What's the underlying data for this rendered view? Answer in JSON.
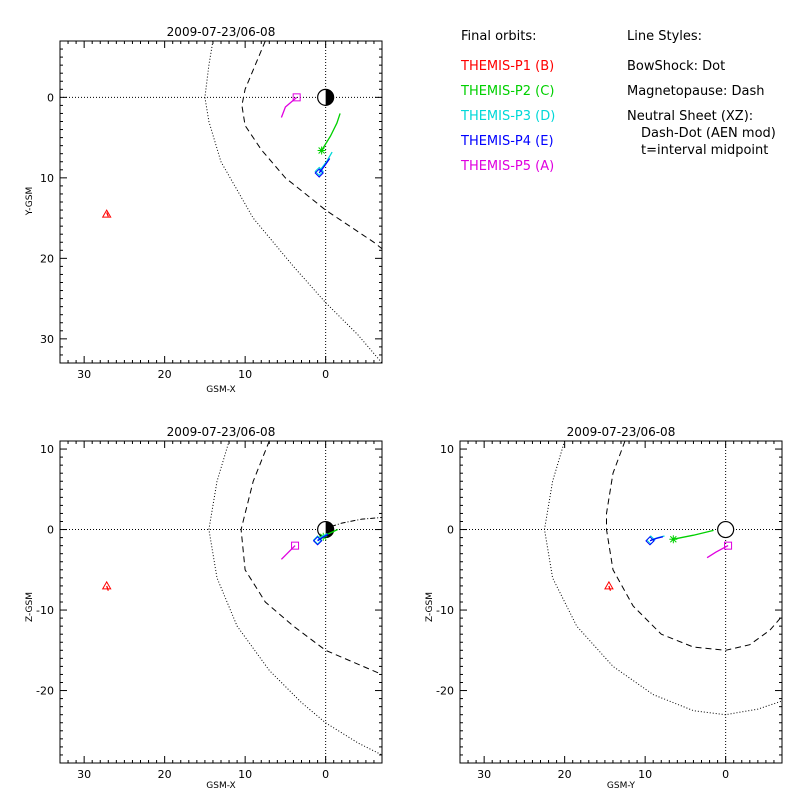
{
  "colors": {
    "p1": "#ff0000",
    "p2": "#00d000",
    "p3": "#00d8d8",
    "p4": "#0000ff",
    "p5": "#e000e0"
  },
  "legend": {
    "final_orbits_title": "Final orbits:",
    "probes": [
      {
        "label": "THEMIS-P1 (B)",
        "color_key": "p1"
      },
      {
        "label": "THEMIS-P2 (C)",
        "color_key": "p2"
      },
      {
        "label": "THEMIS-P3 (D)",
        "color_key": "p3"
      },
      {
        "label": "THEMIS-P4 (E)",
        "color_key": "p4"
      },
      {
        "label": "THEMIS-P5 (A)",
        "color_key": "p5"
      }
    ],
    "line_styles_title": "Line Styles:",
    "bowshock": "BowShock: Dot",
    "magnetopause": "Magnetopause: Dash",
    "neutral_sheet": "Neutral Sheet (XZ):",
    "neutral_sheet_detail": "Dash-Dot (AEN mod)",
    "neutral_sheet_time": "t=interval midpoint"
  },
  "chart_data": [
    {
      "type": "line",
      "title": "2009-07-23/06-08",
      "xlabel": "GSM-X",
      "ylabel": "Y-GSM",
      "xlim": [
        33,
        -7
      ],
      "ylim": [
        33,
        -7
      ],
      "xticks": [
        30,
        20,
        10,
        0
      ],
      "yticks": [
        0,
        10,
        20,
        30
      ],
      "bowshock": [
        [
          14,
          -7
        ],
        [
          14.5,
          -4
        ],
        [
          15,
          0
        ],
        [
          14.5,
          3
        ],
        [
          13,
          8
        ],
        [
          9,
          15
        ],
        [
          4,
          21
        ],
        [
          0,
          25.5
        ],
        [
          -4,
          29.5
        ],
        [
          -7,
          33
        ]
      ],
      "magnetopause": [
        [
          7.5,
          -7
        ],
        [
          10,
          -1
        ],
        [
          10.4,
          1
        ],
        [
          10,
          3.5
        ],
        [
          8,
          6.5
        ],
        [
          5,
          10
        ],
        [
          2.5,
          12
        ],
        [
          0,
          14
        ],
        [
          -3,
          16
        ],
        [
          -6,
          18
        ],
        [
          -7,
          18.8
        ]
      ],
      "orbits": [
        {
          "name": "THEMIS-P1 (B)",
          "color_key": "p1",
          "path": [
            [
              27.2,
              14.3
            ],
            [
              27.0,
              14.8
            ]
          ],
          "end": [
            27.2,
            14.5
          ],
          "marker": "triangle"
        },
        {
          "name": "THEMIS-P2 (C)",
          "color_key": "p2",
          "path": [
            [
              0.5,
              6.6
            ],
            [
              -0.6,
              4.8
            ],
            [
              -1.4,
              3.2
            ],
            [
              -1.8,
              2.0
            ]
          ],
          "end": [
            0.5,
            6.6
          ],
          "marker": "asterisk"
        },
        {
          "name": "THEMIS-P3 (D)",
          "color_key": "p3",
          "path": [
            [
              0.8,
              9.2
            ],
            [
              -0.1,
              8.0
            ],
            [
              -0.8,
              6.8
            ]
          ],
          "end": [
            0.8,
            9.2
          ],
          "marker": "diamond"
        },
        {
          "name": "THEMIS-P4 (E)",
          "color_key": "p4",
          "path": [
            [
              0.8,
              9.4
            ],
            [
              0.2,
              8.6
            ],
            [
              -0.5,
              7.6
            ]
          ],
          "end": [
            0.8,
            9.4
          ],
          "marker": "diamond"
        },
        {
          "name": "THEMIS-P5 (A)",
          "color_key": "p5",
          "path": [
            [
              5.5,
              2.5
            ],
            [
              5.0,
              1.2
            ],
            [
              3.6,
              0
            ]
          ],
          "end": [
            3.6,
            0
          ],
          "marker": "square"
        }
      ]
    },
    {
      "type": "line",
      "title": "2009-07-23/06-08",
      "xlabel": "GSM-X",
      "ylabel": "Z-GSM",
      "xlim": [
        33,
        -7
      ],
      "ylim": [
        -29,
        11
      ],
      "xticks": [
        30,
        20,
        10,
        0
      ],
      "yticks": [
        10,
        0,
        -10,
        -20
      ],
      "bowshock": [
        [
          12,
          11
        ],
        [
          13.5,
          6
        ],
        [
          14.5,
          0
        ],
        [
          13.5,
          -6
        ],
        [
          11,
          -12
        ],
        [
          7,
          -17.5
        ],
        [
          3,
          -21.5
        ],
        [
          0,
          -24
        ],
        [
          -4,
          -26.5
        ],
        [
          -7,
          -28
        ]
      ],
      "magnetopause": [
        [
          7,
          11
        ],
        [
          9,
          6
        ],
        [
          10.5,
          0
        ],
        [
          10,
          -5
        ],
        [
          7.5,
          -9
        ],
        [
          4,
          -12
        ],
        [
          0,
          -15
        ],
        [
          -3.5,
          -16.5
        ],
        [
          -7,
          -18
        ]
      ],
      "neutral_sheet": [
        [
          0.5,
          0
        ],
        [
          -2,
          0.8
        ],
        [
          -4.5,
          1.3
        ],
        [
          -7,
          1.5
        ]
      ],
      "orbits": [
        {
          "name": "THEMIS-P1 (B)",
          "color_key": "p1",
          "path": [
            [
              27.2,
              -7
            ],
            [
              27.0,
              -7.6
            ]
          ],
          "end": [
            27.2,
            -7
          ],
          "marker": "triangle"
        },
        {
          "name": "THEMIS-P2 (C)",
          "color_key": "p2",
          "path": [
            [
              0.3,
              -0.9
            ],
            [
              -0.4,
              -0.5
            ],
            [
              -1.5,
              0
            ]
          ],
          "end": [
            0.3,
            -0.9
          ],
          "marker": "asterisk"
        },
        {
          "name": "THEMIS-P3 (D)",
          "color_key": "p3",
          "path": [
            [
              1.0,
              -1.3
            ],
            [
              0.5,
              -0.9
            ],
            [
              -0.2,
              -0.5
            ]
          ],
          "end": [
            1.0,
            -1.3
          ],
          "marker": "diamond"
        },
        {
          "name": "THEMIS-P4 (E)",
          "color_key": "p4",
          "path": [
            [
              1.0,
              -1.4
            ],
            [
              0.4,
              -1.0
            ],
            [
              -0.3,
              -0.6
            ]
          ],
          "end": [
            1.0,
            -1.4
          ],
          "marker": "diamond"
        },
        {
          "name": "THEMIS-P5 (A)",
          "color_key": "p5",
          "path": [
            [
              5.5,
              -3.7
            ],
            [
              5.0,
              -3.2
            ],
            [
              3.8,
              -2
            ]
          ],
          "end": [
            3.8,
            -2
          ],
          "marker": "square"
        }
      ]
    },
    {
      "type": "line",
      "title": "2009-07-23/06-08",
      "xlabel": "GSM-Y",
      "ylabel": "Z-GSM",
      "xlim": [
        33,
        -7
      ],
      "ylim": [
        -29,
        11
      ],
      "xticks": [
        30,
        20,
        10,
        0
      ],
      "yticks": [
        10,
        0,
        -10,
        -20
      ],
      "bowshock": [
        [
          20,
          11
        ],
        [
          21.5,
          6
        ],
        [
          22.5,
          0
        ],
        [
          21.5,
          -6
        ],
        [
          18.5,
          -12
        ],
        [
          14,
          -17
        ],
        [
          9,
          -20.5
        ],
        [
          4,
          -22.5
        ],
        [
          0,
          -23
        ],
        [
          -4,
          -22.3
        ],
        [
          -7,
          -21.3
        ]
      ],
      "magnetopause": [
        [
          12.5,
          11
        ],
        [
          14,
          7
        ],
        [
          14.8,
          2
        ],
        [
          14.8,
          0
        ],
        [
          14,
          -5
        ],
        [
          11.5,
          -9.5
        ],
        [
          8,
          -13
        ],
        [
          4,
          -14.6
        ],
        [
          0,
          -15
        ],
        [
          -3,
          -14.3
        ],
        [
          -5.5,
          -12.5
        ],
        [
          -6.8,
          -11
        ]
      ],
      "orbits": [
        {
          "name": "THEMIS-P1 (B)",
          "color_key": "p1",
          "path": [
            [
              14.5,
              -7
            ],
            [
              14.3,
              -7.6
            ]
          ],
          "end": [
            14.5,
            -7
          ],
          "marker": "triangle"
        },
        {
          "name": "THEMIS-P2 (C)",
          "color_key": "p2",
          "path": [
            [
              6.5,
              -1.2
            ],
            [
              4.0,
              -0.7
            ],
            [
              1.5,
              -0.1
            ]
          ],
          "end": [
            6.5,
            -1.2
          ],
          "marker": "asterisk"
        },
        {
          "name": "THEMIS-P3 (D)",
          "color_key": "p3",
          "path": [
            [
              9.3,
              -1.3
            ],
            [
              8.4,
              -1.0
            ],
            [
              7.6,
              -0.8
            ]
          ],
          "end": [
            9.3,
            -1.3
          ],
          "marker": "diamond"
        },
        {
          "name": "THEMIS-P4 (E)",
          "color_key": "p4",
          "path": [
            [
              9.4,
              -1.4
            ],
            [
              8.6,
              -1.1
            ],
            [
              7.8,
              -0.9
            ]
          ],
          "end": [
            9.4,
            -1.4
          ],
          "marker": "diamond"
        },
        {
          "name": "THEMIS-P5 (A)",
          "color_key": "p5",
          "path": [
            [
              2.3,
              -3.5
            ],
            [
              1.2,
              -2.8
            ],
            [
              -0.3,
              -2
            ]
          ],
          "end": [
            -0.3,
            -2
          ],
          "marker": "square"
        }
      ]
    }
  ]
}
